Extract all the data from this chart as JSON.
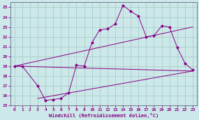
{
  "xlabel": "Windchill (Refroidissement éolien,°C)",
  "bg_color": "#cce8e8",
  "line_color": "#880088",
  "grid_color": "#aacccc",
  "xlim": [
    -0.5,
    23.5
  ],
  "ylim": [
    15,
    25.5
  ],
  "xticks": [
    0,
    1,
    2,
    3,
    4,
    5,
    6,
    7,
    8,
    9,
    10,
    11,
    12,
    13,
    14,
    15,
    16,
    17,
    18,
    19,
    20,
    21,
    22,
    23
  ],
  "yticks": [
    15,
    16,
    17,
    18,
    19,
    20,
    21,
    22,
    23,
    24,
    25
  ],
  "main_x": [
    0,
    1,
    3,
    4,
    5,
    6,
    7,
    8,
    9,
    10,
    11,
    12,
    13,
    14,
    15,
    16,
    17,
    18,
    19,
    20,
    21,
    22,
    23
  ],
  "main_y": [
    19,
    19,
    17,
    15.5,
    15.6,
    15.7,
    16.3,
    19.1,
    19.0,
    21.4,
    22.7,
    22.8,
    23.3,
    25.2,
    24.6,
    24.1,
    22.0,
    22.1,
    23.1,
    23.0,
    20.9,
    19.3,
    18.6
  ],
  "line1_x": [
    0,
    23
  ],
  "line1_y": [
    19.0,
    18.5
  ],
  "line2_x": [
    0,
    23
  ],
  "line2_y": [
    19.0,
    23.0
  ],
  "line3_x": [
    3,
    23
  ],
  "line3_y": [
    15.7,
    18.5
  ]
}
